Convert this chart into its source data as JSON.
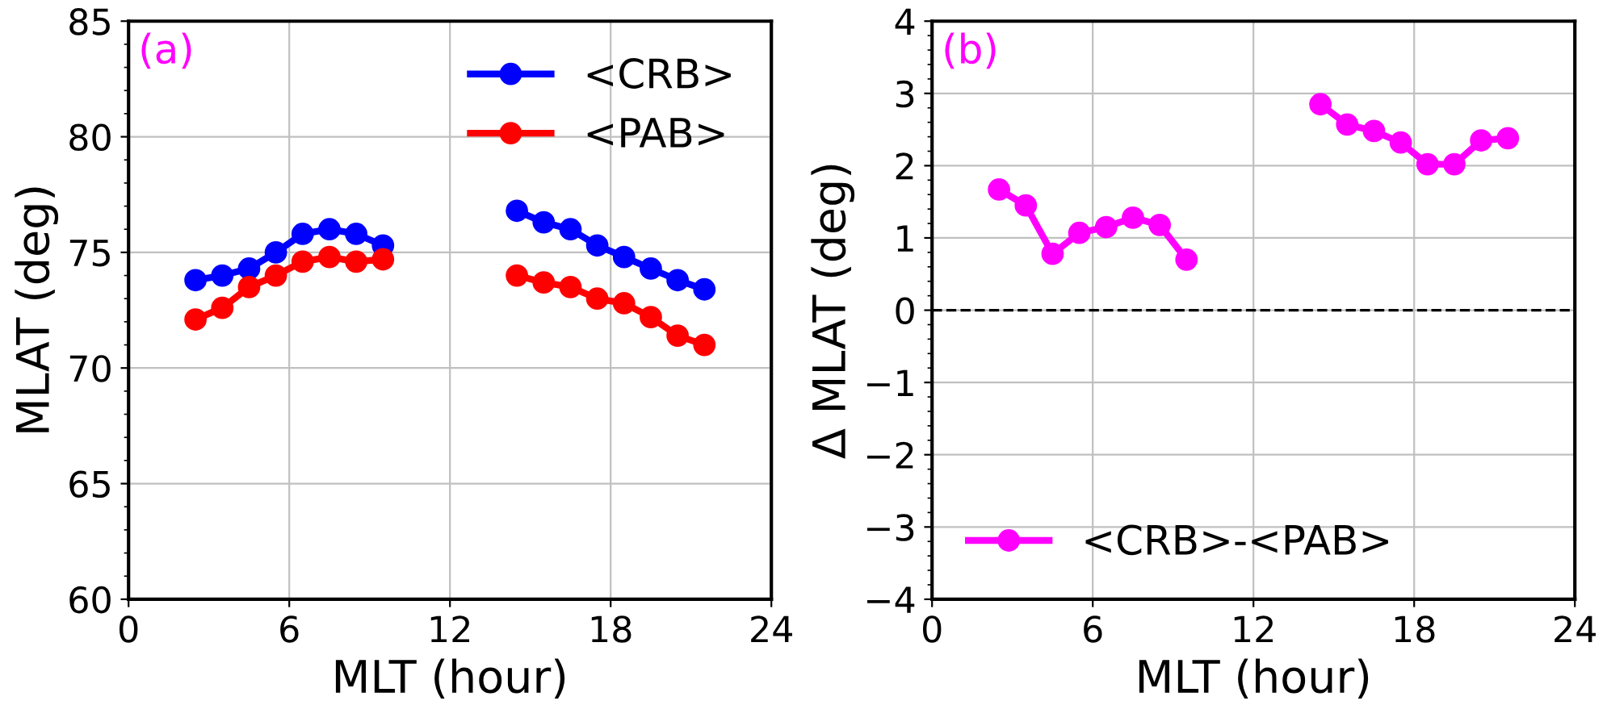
{
  "chart_data": [
    {
      "type": "line",
      "annotations": [
        "(a)"
      ],
      "xlabel": "MLT (hour)",
      "ylabel": "MLAT (deg)",
      "xlim": [
        0,
        24
      ],
      "xticks": [
        0,
        6,
        12,
        18,
        24
      ],
      "ylim": [
        60,
        85
      ],
      "yticks": [
        60,
        65,
        70,
        75,
        80,
        85
      ],
      "grid": true,
      "legend": "top right",
      "marker": "circle",
      "line_style": "solid",
      "x": [
        2.5,
        3.5,
        4.5,
        5.5,
        6.5,
        7.5,
        8.5,
        9.5,
        12,
        14.5,
        15.5,
        16.5,
        17.5,
        18.5,
        19.5,
        20.5,
        21.5
      ],
      "series": [
        {
          "name": "<CRB>",
          "color": "#0000ff",
          "values": [
            73.8,
            74.0,
            74.3,
            75.0,
            75.8,
            76.0,
            75.8,
            75.3,
            null,
            76.8,
            76.3,
            76.0,
            75.3,
            74.8,
            74.3,
            73.8,
            73.4
          ]
        },
        {
          "name": "<PAB>",
          "color": "#ff0000",
          "values": [
            72.1,
            72.6,
            73.5,
            74.0,
            74.6,
            74.8,
            74.6,
            74.7,
            null,
            74.0,
            73.7,
            73.5,
            73.0,
            72.8,
            72.2,
            71.4,
            71.0
          ]
        }
      ]
    },
    {
      "type": "line",
      "annotations": [
        "(b)"
      ],
      "xlabel": "MLT (hour)",
      "ylabel": "Δ MLAT (deg)",
      "xlim": [
        0,
        24
      ],
      "xticks": [
        0,
        6,
        12,
        18,
        24
      ],
      "ylim": [
        -4,
        4
      ],
      "yticks": [
        {
          "value": -4,
          "label": "−4"
        },
        {
          "value": -3,
          "label": "−3"
        },
        {
          "value": -2,
          "label": "−2"
        },
        {
          "value": -1,
          "label": "−1"
        },
        0,
        1,
        2,
        3,
        4
      ],
      "grid": true,
      "legend": "bottom left",
      "marker": "circle",
      "line_style": "solid",
      "ref_lines": [
        {
          "axis": "y",
          "value": 0,
          "label": null,
          "color": "#000000",
          "line_style": "dashed"
        }
      ],
      "x": [
        2.5,
        3.5,
        4.5,
        5.5,
        6.5,
        7.5,
        8.5,
        9.5,
        12,
        14.5,
        15.5,
        16.5,
        17.5,
        18.5,
        19.5,
        20.5,
        21.5
      ],
      "series": [
        {
          "name": "<CRB>-<PAB>",
          "color": "#ff00ff",
          "values": [
            1.67,
            1.45,
            0.78,
            1.07,
            1.15,
            1.28,
            1.18,
            0.7,
            null,
            2.85,
            2.57,
            2.48,
            2.32,
            2.02,
            2.02,
            2.35,
            2.38
          ]
        }
      ]
    }
  ]
}
